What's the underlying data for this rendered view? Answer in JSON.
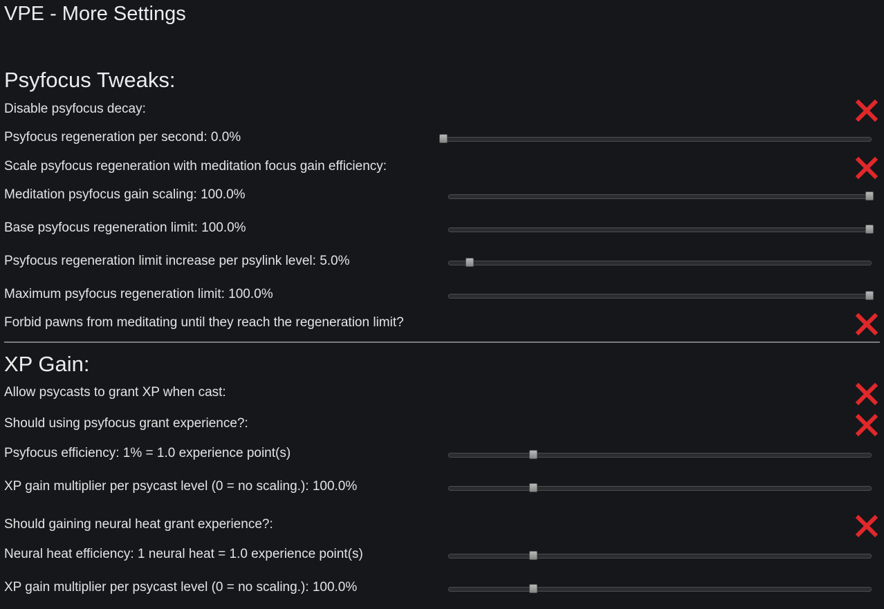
{
  "window": {
    "title": "VPE - More Settings"
  },
  "sections": {
    "psyfocus": {
      "title": "Psyfocus Tweaks:"
    },
    "xp": {
      "title": "XP Gain:"
    }
  },
  "rows": [
    {
      "label": "Disable psyfocus decay:",
      "control": "toggle",
      "state": "off",
      "icon": "red-x-icon"
    },
    {
      "label": "Psyfocus regeneration per second: 0.0%",
      "control": "slider",
      "value_fraction": 0.0
    },
    {
      "label": "Scale psyfocus regeneration with meditation focus gain efficiency:",
      "control": "toggle",
      "state": "off",
      "icon": "red-x-icon"
    },
    {
      "label": "Meditation psyfocus gain scaling: 100.0%",
      "control": "slider",
      "value_fraction": 1.0
    },
    {
      "label": "Base psyfocus regeneration limit: 100.0%",
      "control": "slider",
      "value_fraction": 1.0
    },
    {
      "label": "Psyfocus regeneration limit increase per psylink level: 5.0%",
      "control": "slider",
      "value_fraction": 0.05
    },
    {
      "label": "Maximum psyfocus regeneration limit: 100.0%",
      "control": "slider",
      "value_fraction": 1.0
    },
    {
      "label": "Forbid pawns from meditating until they reach the regeneration limit?",
      "control": "toggle",
      "state": "off",
      "icon": "red-x-icon"
    },
    {
      "label": "Allow psycasts to grant XP when cast:",
      "control": "toggle",
      "state": "off",
      "icon": "red-x-icon"
    },
    {
      "label": "Should using psyfocus grant experience?:",
      "control": "toggle",
      "state": "off",
      "icon": "red-x-icon"
    },
    {
      "label": "Psyfocus efficiency: 1% = 1.0 experience point(s)",
      "control": "slider",
      "value_fraction": 0.2
    },
    {
      "label": "XP gain multiplier per psycast level (0 = no scaling.): 100.0%",
      "control": "slider",
      "value_fraction": 0.2
    },
    {
      "label": "Should gaining neural heat grant experience?:",
      "control": "toggle",
      "state": "off",
      "icon": "red-x-icon"
    },
    {
      "label": "Neural heat efficiency: 1 neural heat = 1.0 experience point(s)",
      "control": "slider",
      "value_fraction": 0.2
    },
    {
      "label": "XP gain multiplier per psycast level (0 = no scaling.): 100.0%",
      "control": "slider",
      "value_fraction": 0.2
    }
  ],
  "colors": {
    "background": "#15171b",
    "toggle_off": "#e0282a",
    "text": "#e4e4e4"
  }
}
